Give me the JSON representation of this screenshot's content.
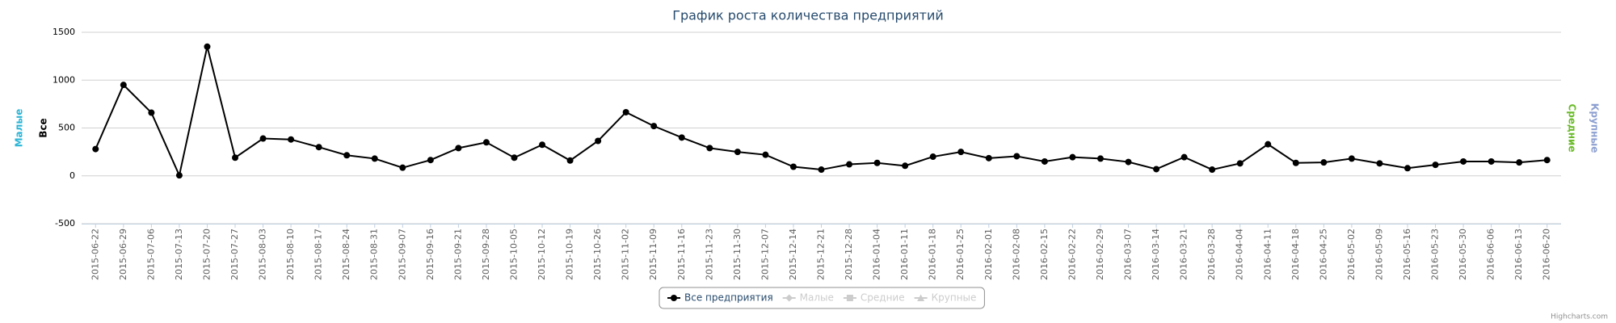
{
  "chart_data": {
    "type": "line",
    "title": "График роста количества предприятий",
    "categories": [
      "2015-06-22",
      "2015-06-29",
      "2015-07-06",
      "2015-07-13",
      "2015-07-20",
      "2015-07-27",
      "2015-08-03",
      "2015-08-10",
      "2015-08-17",
      "2015-08-24",
      "2015-08-31",
      "2015-09-07",
      "2015-09-16",
      "2015-09-21",
      "2015-09-28",
      "2015-10-05",
      "2015-10-12",
      "2015-10-19",
      "2015-10-26",
      "2015-11-02",
      "2015-11-09",
      "2015-11-16",
      "2015-11-23",
      "2015-11-30",
      "2015-12-07",
      "2015-12-14",
      "2015-12-21",
      "2015-12-28",
      "2016-01-04",
      "2016-01-11",
      "2016-01-18",
      "2016-01-25",
      "2016-02-01",
      "2016-02-08",
      "2016-02-15",
      "2016-02-22",
      "2016-02-29",
      "2016-03-07",
      "2016-03-14",
      "2016-03-21",
      "2016-03-28",
      "2016-04-04",
      "2016-04-11",
      "2016-04-18",
      "2016-04-25",
      "2016-05-02",
      "2016-05-09",
      "2016-05-16",
      "2016-05-23",
      "2016-05-30",
      "2016-06-06",
      "2016-06-13",
      "2016-06-20"
    ],
    "series": [
      {
        "name": "Все предприятия",
        "color": "#000000",
        "marker": "circle",
        "visible": true,
        "values": [
          280,
          950,
          660,
          5,
          1350,
          190,
          390,
          380,
          300,
          215,
          180,
          85,
          165,
          290,
          350,
          190,
          325,
          160,
          365,
          665,
          520,
          400,
          290,
          250,
          220,
          95,
          65,
          120,
          135,
          105,
          200,
          250,
          185,
          205,
          150,
          195,
          180,
          145,
          70,
          195,
          65,
          130,
          330,
          135,
          140,
          180,
          130,
          80,
          115,
          150,
          150,
          140,
          165
        ]
      },
      {
        "name": "Малые",
        "color": "#2bb5d6",
        "marker": "diamond",
        "visible": false
      },
      {
        "name": "Средние",
        "color": "#6bbb2b",
        "marker": "square",
        "visible": false
      },
      {
        "name": "Крупные",
        "color": "#8c9fd0",
        "marker": "triangle",
        "visible": false
      }
    ],
    "axes": [
      {
        "title": "Малые",
        "color": "#2bb5d6",
        "side": "left"
      },
      {
        "title": "Все",
        "color": "#000000",
        "side": "left"
      },
      {
        "title": "Средние",
        "color": "#6bbb2b",
        "side": "right"
      },
      {
        "title": "Крупные",
        "color": "#8c9fd0",
        "side": "right"
      }
    ],
    "ylim": [
      -500,
      1500
    ],
    "yticks": [
      -500,
      0,
      500,
      1000,
      1500
    ],
    "grid": true,
    "legend": "bottom",
    "credits": "Highcharts.com"
  }
}
